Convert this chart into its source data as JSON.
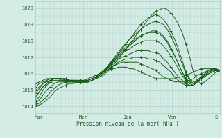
{
  "xlabel": "Pression niveau de la mer( hPa )",
  "bg_color": "#d4ece6",
  "grid_color": "#b0d0c8",
  "line_color": "#1a5c1a",
  "tick_label_color": "#1a5c1a",
  "ylim": [
    1013.6,
    1020.4
  ],
  "xlim": [
    0,
    100
  ],
  "day_labels": [
    "Mar",
    "Mer",
    "Jeu",
    "Ven",
    "S"
  ],
  "day_positions": [
    2,
    26,
    50,
    74,
    98
  ],
  "yticks": [
    1014,
    1015,
    1016,
    1017,
    1018,
    1019,
    1020
  ],
  "series": [
    [
      1014.0,
      1014.1,
      1014.2,
      1014.4,
      1014.6,
      1014.9,
      1015.1,
      1015.2,
      1015.3,
      1015.4,
      1015.4,
      1015.5,
      1015.5,
      1015.5,
      1015.5,
      1015.6,
      1015.7,
      1015.8,
      1015.9,
      1016.1,
      1016.3,
      1016.6,
      1016.9,
      1017.2,
      1017.5,
      1017.8,
      1018.1,
      1018.4,
      1018.7,
      1019.0,
      1019.3,
      1019.6,
      1019.8,
      1019.9,
      1020.0,
      1019.9,
      1019.7,
      1019.4,
      1019.0,
      1018.5,
      1017.8,
      1017.0,
      1016.1,
      1015.6,
      1015.4,
      1015.5,
      1015.7,
      1015.9,
      1016.1,
      1016.2
    ],
    [
      1014.1,
      1014.2,
      1014.4,
      1014.6,
      1014.9,
      1015.1,
      1015.3,
      1015.4,
      1015.5,
      1015.5,
      1015.6,
      1015.6,
      1015.6,
      1015.6,
      1015.6,
      1015.7,
      1015.8,
      1015.9,
      1016.1,
      1016.3,
      1016.6,
      1016.9,
      1017.2,
      1017.5,
      1017.8,
      1018.1,
      1018.4,
      1018.7,
      1019.0,
      1019.2,
      1019.4,
      1019.5,
      1019.6,
      1019.5,
      1019.3,
      1019.0,
      1018.6,
      1018.1,
      1017.5,
      1016.8,
      1016.1,
      1015.7,
      1015.5,
      1015.6,
      1015.8,
      1016.0,
      1016.2,
      1016.3,
      1016.3,
      1016.2
    ],
    [
      1014.2,
      1014.4,
      1014.7,
      1015.0,
      1015.2,
      1015.4,
      1015.5,
      1015.5,
      1015.5,
      1015.5,
      1015.5,
      1015.5,
      1015.5,
      1015.5,
      1015.5,
      1015.6,
      1015.7,
      1015.9,
      1016.1,
      1016.4,
      1016.7,
      1017.0,
      1017.3,
      1017.6,
      1017.8,
      1018.1,
      1018.3,
      1018.5,
      1018.7,
      1018.9,
      1019.0,
      1019.1,
      1019.2,
      1019.1,
      1019.0,
      1018.7,
      1018.3,
      1017.8,
      1017.2,
      1016.6,
      1016.0,
      1015.6,
      1015.4,
      1015.5,
      1015.7,
      1015.9,
      1016.1,
      1016.2,
      1016.3,
      1016.2
    ],
    [
      1014.3,
      1014.6,
      1015.0,
      1015.3,
      1015.5,
      1015.6,
      1015.6,
      1015.6,
      1015.6,
      1015.6,
      1015.5,
      1015.5,
      1015.5,
      1015.5,
      1015.5,
      1015.6,
      1015.7,
      1015.9,
      1016.1,
      1016.4,
      1016.7,
      1016.9,
      1017.2,
      1017.4,
      1017.6,
      1017.8,
      1018.0,
      1018.2,
      1018.3,
      1018.4,
      1018.5,
      1018.5,
      1018.5,
      1018.4,
      1018.2,
      1017.9,
      1017.5,
      1017.1,
      1016.6,
      1016.1,
      1015.7,
      1015.5,
      1015.4,
      1015.5,
      1015.7,
      1015.9,
      1016.1,
      1016.2,
      1016.3,
      1016.2
    ],
    [
      1014.5,
      1014.9,
      1015.2,
      1015.4,
      1015.6,
      1015.7,
      1015.7,
      1015.7,
      1015.6,
      1015.6,
      1015.6,
      1015.5,
      1015.5,
      1015.5,
      1015.5,
      1015.6,
      1015.7,
      1015.9,
      1016.1,
      1016.3,
      1016.6,
      1016.8,
      1017.0,
      1017.2,
      1017.4,
      1017.5,
      1017.7,
      1017.8,
      1017.9,
      1018.0,
      1018.0,
      1018.0,
      1018.0,
      1017.9,
      1017.7,
      1017.4,
      1017.1,
      1016.7,
      1016.3,
      1015.9,
      1015.6,
      1015.4,
      1015.3,
      1015.5,
      1015.7,
      1015.9,
      1016.1,
      1016.2,
      1016.2,
      1016.1
    ],
    [
      1014.8,
      1015.1,
      1015.4,
      1015.5,
      1015.6,
      1015.7,
      1015.7,
      1015.7,
      1015.6,
      1015.6,
      1015.5,
      1015.5,
      1015.5,
      1015.5,
      1015.5,
      1015.6,
      1015.7,
      1015.9,
      1016.1,
      1016.3,
      1016.5,
      1016.7,
      1016.9,
      1017.0,
      1017.1,
      1017.2,
      1017.3,
      1017.4,
      1017.4,
      1017.4,
      1017.4,
      1017.3,
      1017.3,
      1017.2,
      1016.9,
      1016.7,
      1016.4,
      1016.1,
      1015.8,
      1015.6,
      1015.4,
      1015.3,
      1015.3,
      1015.5,
      1015.7,
      1015.9,
      1016.0,
      1016.1,
      1016.2,
      1016.1
    ],
    [
      1015.0,
      1015.2,
      1015.4,
      1015.6,
      1015.7,
      1015.7,
      1015.7,
      1015.7,
      1015.7,
      1015.6,
      1015.6,
      1015.5,
      1015.5,
      1015.5,
      1015.5,
      1015.6,
      1015.7,
      1015.8,
      1016.0,
      1016.2,
      1016.4,
      1016.5,
      1016.7,
      1016.8,
      1016.9,
      1016.9,
      1017.0,
      1017.0,
      1017.0,
      1017.0,
      1016.9,
      1016.9,
      1016.8,
      1016.7,
      1016.5,
      1016.3,
      1016.1,
      1015.8,
      1015.6,
      1015.4,
      1015.3,
      1015.3,
      1015.3,
      1015.5,
      1015.7,
      1015.8,
      1016.0,
      1016.1,
      1016.2,
      1016.1
    ],
    [
      1015.2,
      1015.4,
      1015.5,
      1015.6,
      1015.7,
      1015.7,
      1015.7,
      1015.7,
      1015.6,
      1015.6,
      1015.5,
      1015.5,
      1015.5,
      1015.5,
      1015.6,
      1015.7,
      1015.8,
      1016.0,
      1016.1,
      1016.3,
      1016.4,
      1016.5,
      1016.6,
      1016.7,
      1016.7,
      1016.7,
      1016.7,
      1016.7,
      1016.6,
      1016.5,
      1016.4,
      1016.3,
      1016.2,
      1016.0,
      1015.8,
      1015.7,
      1015.6,
      1015.5,
      1015.5,
      1015.5,
      1015.5,
      1015.6,
      1015.7,
      1015.9,
      1016.0,
      1016.1,
      1016.2,
      1016.3,
      1016.2,
      1016.1
    ],
    [
      1015.4,
      1015.5,
      1015.6,
      1015.7,
      1015.7,
      1015.7,
      1015.7,
      1015.6,
      1015.6,
      1015.5,
      1015.5,
      1015.5,
      1015.5,
      1015.6,
      1015.7,
      1015.8,
      1015.9,
      1016.0,
      1016.1,
      1016.2,
      1016.3,
      1016.3,
      1016.4,
      1016.4,
      1016.4,
      1016.3,
      1016.3,
      1016.2,
      1016.1,
      1016.0,
      1015.9,
      1015.8,
      1015.7,
      1015.7,
      1015.7,
      1015.7,
      1015.7,
      1015.7,
      1015.8,
      1015.8,
      1015.9,
      1016.0,
      1016.1,
      1016.2,
      1016.3,
      1016.3,
      1016.3,
      1016.3,
      1016.2,
      1016.1
    ],
    [
      1014.6,
      1014.9,
      1015.2,
      1015.4,
      1015.6,
      1015.7,
      1015.7,
      1015.7,
      1015.7,
      1015.6,
      1015.6,
      1015.6,
      1015.6,
      1015.6,
      1015.6,
      1015.7,
      1015.8,
      1016.0,
      1016.2,
      1016.4,
      1016.6,
      1016.8,
      1017.1,
      1017.3,
      1017.5,
      1017.7,
      1017.9,
      1018.1,
      1018.3,
      1018.4,
      1018.5,
      1018.6,
      1018.6,
      1018.5,
      1018.3,
      1018.0,
      1017.6,
      1017.1,
      1016.6,
      1016.1,
      1015.7,
      1015.5,
      1015.4,
      1015.6,
      1015.8,
      1016.0,
      1016.2,
      1016.3,
      1016.3,
      1016.2
    ]
  ]
}
